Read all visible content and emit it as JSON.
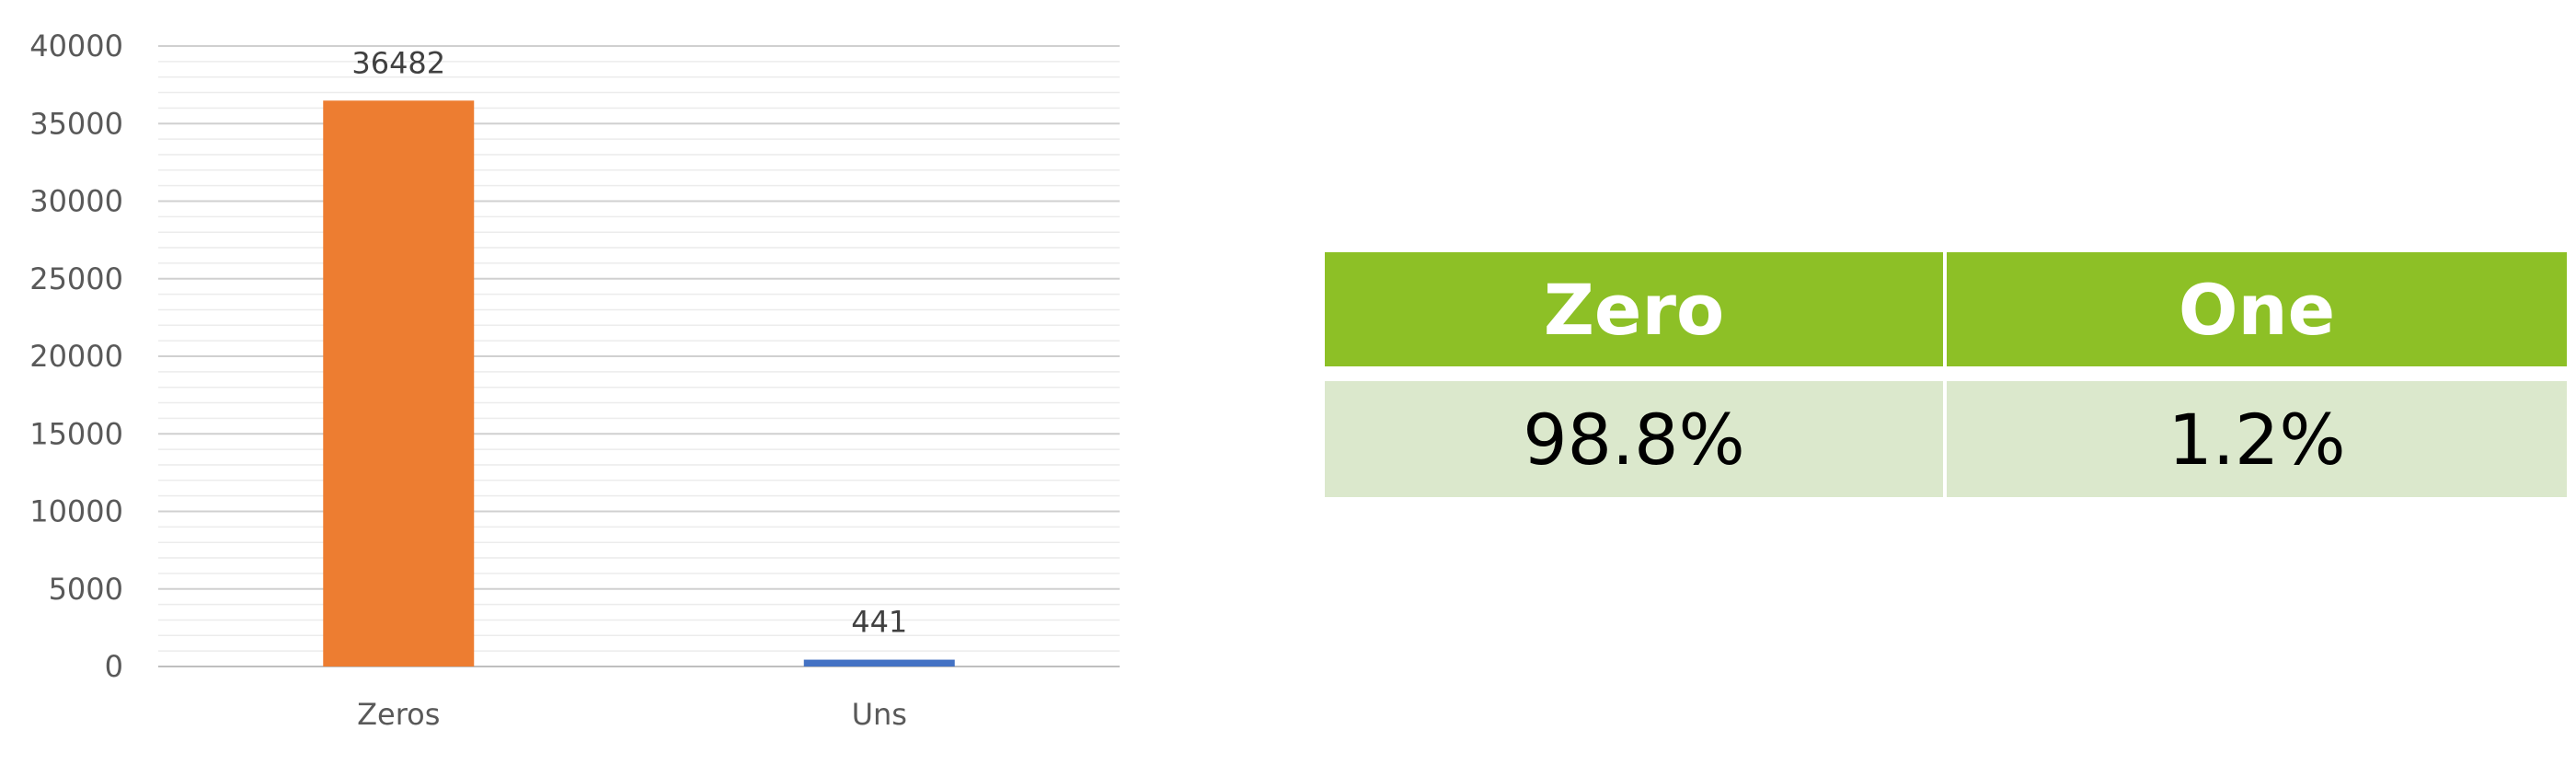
{
  "chart_data": {
    "type": "bar",
    "categories": [
      "Zeros",
      "Uns"
    ],
    "values": [
      36482,
      441
    ],
    "data_labels": [
      "36482",
      "441"
    ],
    "bar_colors": [
      "#ed7d31",
      "#4472c4"
    ],
    "ylim": [
      0,
      40000
    ],
    "yticks": [
      "0",
      "5000",
      "10000",
      "15000",
      "20000",
      "25000",
      "30000",
      "35000",
      "40000"
    ],
    "title": "",
    "xlabel": "",
    "ylabel": "",
    "grid": true,
    "legend": "none"
  },
  "table": {
    "headers": [
      "Zero",
      "One"
    ],
    "values": [
      "98.8%",
      "1.2%"
    ],
    "header_color": "#8dc026",
    "value_color": "#dbe8cc"
  }
}
